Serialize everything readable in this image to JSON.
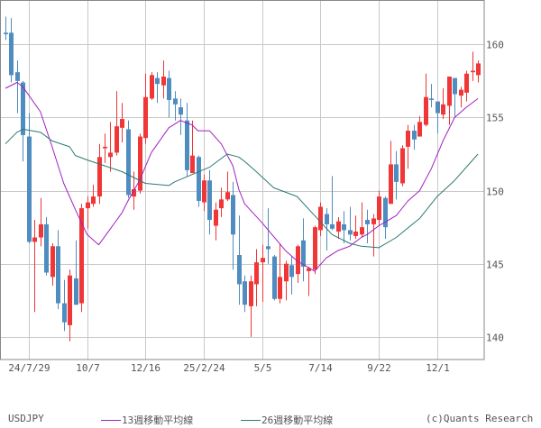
{
  "chart_data": {
    "type": "candlestick",
    "symbol": "USDJPY",
    "copyright": "(c)Quants Research",
    "colors": {
      "up": "#f03636",
      "down": "#4f8cc0",
      "ma13": "#a020c0",
      "ma26": "#2a7a72",
      "grid": "#c8c8c8"
    },
    "ylim": [
      139,
      162.5
    ],
    "y_ticks": [
      140,
      145,
      150,
      155,
      160
    ],
    "y_axis_position": "right",
    "grid": true,
    "x_ticks": [
      {
        "date": "2024-07-29",
        "label": "24/7/29"
      },
      {
        "date": "2024-10-07",
        "label": "10/7"
      },
      {
        "date": "2024-12-16",
        "label": "12/16"
      },
      {
        "date": "2025-02-24",
        "label": "25/2/24"
      },
      {
        "date": "2025-05-05",
        "label": "5/5"
      },
      {
        "date": "2025-07-14",
        "label": "7/14"
      },
      {
        "date": "2025-09-22",
        "label": "9/22"
      },
      {
        "date": "2025-12-01",
        "label": "12/1"
      }
    ],
    "legend": [
      {
        "name": "13週移動平均線",
        "color": "#a020c0"
      },
      {
        "name": "26週移動平均線",
        "color": "#2a7a72"
      }
    ],
    "candles_columns": [
      "date",
      "open",
      "high",
      "low",
      "close"
    ],
    "candles": [
      [
        "2024-07-01",
        160.8,
        161.9,
        160.3,
        160.7
      ],
      [
        "2024-07-08",
        160.8,
        161.8,
        157.4,
        157.9
      ],
      [
        "2024-07-15",
        158.1,
        158.9,
        155.3,
        157.5
      ],
      [
        "2024-07-22",
        157.4,
        157.5,
        152.0,
        153.8
      ],
      [
        "2024-07-29",
        153.7,
        155.3,
        146.4,
        146.5
      ],
      [
        "2024-08-05",
        146.5,
        148.0,
        141.7,
        146.8
      ],
      [
        "2024-08-12",
        146.8,
        149.5,
        146.2,
        147.7
      ],
      [
        "2024-08-19",
        147.7,
        148.2,
        144.2,
        144.4
      ],
      [
        "2024-08-26",
        144.1,
        146.4,
        143.5,
        146.2
      ],
      [
        "2024-09-02",
        146.2,
        147.3,
        141.9,
        142.3
      ],
      [
        "2024-09-09",
        142.3,
        143.9,
        140.4,
        141.0
      ],
      [
        "2024-09-16",
        140.8,
        144.6,
        139.7,
        144.2
      ],
      [
        "2024-09-23",
        144.0,
        146.6,
        142.2,
        142.2
      ],
      [
        "2024-09-30",
        142.3,
        149.1,
        141.7,
        148.8
      ],
      [
        "2024-10-07",
        148.8,
        149.6,
        147.4,
        149.2
      ],
      [
        "2024-10-14",
        149.1,
        150.4,
        148.9,
        149.6
      ],
      [
        "2024-10-21",
        149.6,
        153.2,
        149.1,
        152.3
      ],
      [
        "2024-10-28",
        152.9,
        153.9,
        151.9,
        153.0
      ],
      [
        "2024-11-04",
        152.3,
        154.7,
        151.3,
        152.6
      ],
      [
        "2024-11-11",
        152.6,
        156.8,
        152.4,
        154.4
      ],
      [
        "2024-11-18",
        154.3,
        156.0,
        153.3,
        154.9
      ],
      [
        "2024-11-25",
        154.2,
        154.8,
        149.5,
        149.7
      ],
      [
        "2024-12-02",
        149.6,
        151.3,
        148.7,
        150.1
      ],
      [
        "2024-12-09",
        150.0,
        153.9,
        149.8,
        153.7
      ],
      [
        "2024-12-16",
        153.6,
        158.0,
        153.2,
        156.4
      ],
      [
        "2024-12-23",
        156.3,
        158.1,
        156.2,
        157.9
      ],
      [
        "2024-12-30",
        157.7,
        158.1,
        156.0,
        157.3
      ],
      [
        "2025-01-06",
        157.2,
        158.9,
        156.3,
        157.8
      ],
      [
        "2025-01-13",
        157.7,
        158.2,
        155.0,
        156.2
      ],
      [
        "2025-01-20",
        156.3,
        156.8,
        154.8,
        155.9
      ],
      [
        "2025-01-27",
        155.7,
        156.3,
        153.8,
        155.2
      ],
      [
        "2025-02-03",
        154.8,
        156.0,
        151.0,
        151.4
      ],
      [
        "2025-02-10",
        151.2,
        154.8,
        151.2,
        152.4
      ],
      [
        "2025-02-17",
        152.3,
        152.4,
        148.9,
        149.3
      ],
      [
        "2025-02-24",
        149.2,
        151.1,
        148.6,
        150.7
      ],
      [
        "2025-03-03",
        150.7,
        151.4,
        147.0,
        148.0
      ],
      [
        "2025-03-10",
        147.6,
        149.2,
        146.6,
        148.7
      ],
      [
        "2025-03-17",
        148.8,
        150.2,
        148.2,
        149.4
      ],
      [
        "2025-03-24",
        149.4,
        151.3,
        149.3,
        149.9
      ],
      [
        "2025-03-31",
        149.7,
        150.6,
        144.6,
        147.0
      ],
      [
        "2025-04-07",
        145.6,
        148.3,
        142.2,
        143.6
      ],
      [
        "2025-04-14",
        143.8,
        144.2,
        141.7,
        142.2
      ],
      [
        "2025-04-21",
        142.1,
        144.2,
        140.0,
        143.8
      ],
      [
        "2025-04-28",
        143.6,
        146.0,
        142.1,
        145.1
      ],
      [
        "2025-05-05",
        145.1,
        146.3,
        142.4,
        145.4
      ],
      [
        "2025-05-12",
        146.2,
        148.8,
        145.0,
        146.0
      ],
      [
        "2025-05-19",
        145.5,
        145.6,
        142.5,
        142.6
      ],
      [
        "2025-05-26",
        142.6,
        146.4,
        142.3,
        144.1
      ],
      [
        "2025-06-02",
        143.8,
        145.2,
        142.5,
        145.0
      ],
      [
        "2025-06-09",
        144.9,
        145.5,
        142.9,
        144.1
      ],
      [
        "2025-06-16",
        144.3,
        146.3,
        143.7,
        146.2
      ],
      [
        "2025-06-23",
        146.6,
        148.1,
        143.8,
        144.8
      ],
      [
        "2025-06-30",
        144.5,
        144.8,
        142.8,
        144.7
      ],
      [
        "2025-07-07",
        144.6,
        147.6,
        144.3,
        147.5
      ],
      [
        "2025-07-14",
        147.3,
        149.2,
        146.9,
        148.9
      ],
      [
        "2025-07-21",
        148.4,
        148.8,
        145.9,
        147.7
      ],
      [
        "2025-07-28",
        147.7,
        151.0,
        147.3,
        147.4
      ],
      [
        "2025-08-04",
        147.2,
        148.2,
        146.7,
        147.9
      ],
      [
        "2025-08-11",
        147.7,
        148.6,
        146.4,
        147.3
      ],
      [
        "2025-08-18",
        147.3,
        148.9,
        146.6,
        147.0
      ],
      [
        "2025-08-25",
        146.9,
        148.3,
        146.7,
        147.2
      ],
      [
        "2025-09-01",
        147.0,
        149.2,
        146.8,
        147.5
      ],
      [
        "2025-09-08",
        148.0,
        148.7,
        146.4,
        147.7
      ],
      [
        "2025-09-15",
        147.7,
        148.4,
        145.5,
        148.1
      ],
      [
        "2025-09-22",
        148.0,
        150.0,
        147.6,
        149.6
      ],
      [
        "2025-09-29",
        149.5,
        149.6,
        146.7,
        147.5
      ],
      [
        "2025-10-06",
        149.1,
        153.4,
        149.1,
        151.8
      ],
      [
        "2025-10-13",
        151.8,
        152.7,
        149.4,
        150.6
      ],
      [
        "2025-10-20",
        150.5,
        153.1,
        150.3,
        152.9
      ],
      [
        "2025-10-27",
        153.0,
        154.5,
        151.5,
        154.1
      ],
      [
        "2025-11-03",
        154.1,
        154.5,
        152.8,
        153.5
      ],
      [
        "2025-11-10",
        153.7,
        155.1,
        153.7,
        154.7
      ],
      [
        "2025-11-17",
        154.5,
        158.0,
        154.4,
        156.4
      ],
      [
        "2025-11-24",
        156.3,
        157.3,
        155.7,
        156.2
      ],
      [
        "2025-12-01",
        156.1,
        156.1,
        153.9,
        155.3
      ],
      [
        "2025-12-08",
        155.2,
        157.0,
        154.9,
        155.9
      ],
      [
        "2025-12-15",
        155.8,
        157.8,
        154.5,
        157.8
      ],
      [
        "2025-12-22",
        157.7,
        157.7,
        155.0,
        156.6
      ],
      [
        "2025-12-29",
        156.5,
        157.1,
        155.7,
        156.9
      ],
      [
        "2026-01-05",
        156.7,
        158.2,
        156.1,
        158.0
      ],
      [
        "2026-01-12",
        158.1,
        159.5,
        157.5,
        158.2
      ],
      [
        "2026-01-19",
        157.9,
        158.9,
        157.4,
        158.7
      ]
    ],
    "ma13": [
      [
        "2024-07-01",
        157.0
      ],
      [
        "2024-07-15",
        157.4
      ],
      [
        "2024-07-22",
        157.1
      ],
      [
        "2024-08-12",
        155.4
      ],
      [
        "2024-08-26",
        153.0
      ],
      [
        "2024-09-09",
        150.5
      ],
      [
        "2024-09-23",
        148.7
      ],
      [
        "2024-10-07",
        147.0
      ],
      [
        "2024-10-21",
        146.3
      ],
      [
        "2024-11-04",
        147.4
      ],
      [
        "2024-11-18",
        148.5
      ],
      [
        "2024-11-25",
        149.3
      ],
      [
        "2024-12-09",
        150.7
      ],
      [
        "2024-12-23",
        152.6
      ],
      [
        "2025-01-13",
        154.3
      ],
      [
        "2025-01-27",
        154.8
      ],
      [
        "2025-02-10",
        154.5
      ],
      [
        "2025-02-17",
        154.1
      ],
      [
        "2025-03-03",
        154.1
      ],
      [
        "2025-03-17",
        153.2
      ],
      [
        "2025-03-31",
        151.7
      ],
      [
        "2025-04-07",
        150.1
      ],
      [
        "2025-04-14",
        149.1
      ],
      [
        "2025-05-05",
        147.8
      ],
      [
        "2025-06-02",
        145.9
      ],
      [
        "2025-06-16",
        145.2
      ],
      [
        "2025-07-07",
        144.5
      ],
      [
        "2025-07-21",
        145.4
      ],
      [
        "2025-08-04",
        145.9
      ],
      [
        "2025-08-18",
        146.2
      ],
      [
        "2025-09-01",
        146.8
      ],
      [
        "2025-09-08",
        147.0
      ],
      [
        "2025-09-22",
        147.6
      ],
      [
        "2025-10-13",
        148.3
      ],
      [
        "2025-10-27",
        149.3
      ],
      [
        "2025-11-10",
        150.0
      ],
      [
        "2025-11-24",
        151.5
      ],
      [
        "2025-12-08",
        153.4
      ],
      [
        "2025-12-22",
        155.0
      ],
      [
        "2026-01-05",
        155.7
      ],
      [
        "2026-01-19",
        156.3
      ]
    ],
    "ma26": [
      [
        "2024-07-01",
        153.2
      ],
      [
        "2024-07-15",
        154.0
      ],
      [
        "2024-07-22",
        154.2
      ],
      [
        "2024-08-12",
        154.0
      ],
      [
        "2024-08-26",
        153.4
      ],
      [
        "2024-09-16",
        153.0
      ],
      [
        "2024-09-23",
        152.4
      ],
      [
        "2024-10-07",
        152.1
      ],
      [
        "2024-10-28",
        151.7
      ],
      [
        "2024-11-18",
        151.3
      ],
      [
        "2024-12-02",
        150.9
      ],
      [
        "2024-12-16",
        150.5
      ],
      [
        "2025-01-13",
        150.35
      ],
      [
        "2025-01-20",
        150.6
      ],
      [
        "2025-02-10",
        151.1
      ],
      [
        "2025-03-03",
        151.6
      ],
      [
        "2025-03-17",
        152.2
      ],
      [
        "2025-03-24",
        152.5
      ],
      [
        "2025-04-07",
        152.3
      ],
      [
        "2025-04-14",
        152.0
      ],
      [
        "2025-04-28",
        151.3
      ],
      [
        "2025-05-19",
        150.2
      ],
      [
        "2025-06-16",
        149.6
      ],
      [
        "2025-07-07",
        148.3
      ],
      [
        "2025-07-28",
        147.0
      ],
      [
        "2025-08-18",
        146.4
      ],
      [
        "2025-09-01",
        146.2
      ],
      [
        "2025-09-22",
        146.1
      ],
      [
        "2025-10-13",
        146.8
      ],
      [
        "2025-11-10",
        148.1
      ],
      [
        "2025-12-01",
        149.6
      ],
      [
        "2025-12-22",
        150.7
      ],
      [
        "2026-01-19",
        152.5
      ]
    ]
  }
}
